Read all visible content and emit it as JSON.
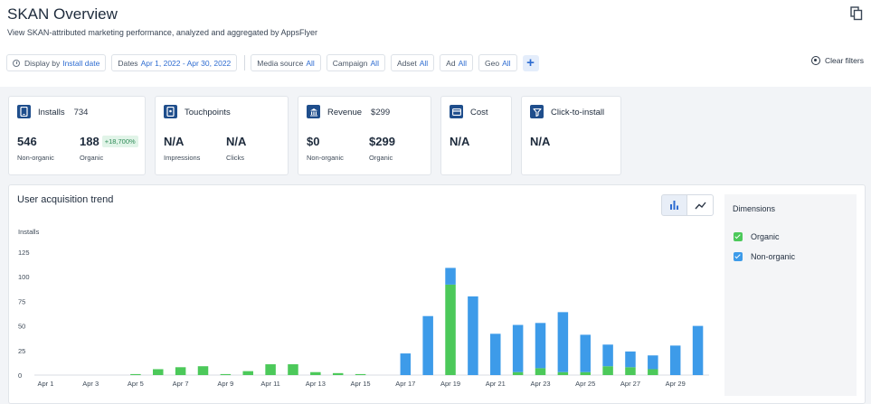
{
  "header": {
    "title": "SKAN Overview",
    "subtitle": "View SKAN-attributed marketing performance, analyzed and aggregated by AppsFlyer"
  },
  "filters": {
    "display_by": {
      "label": "Display by",
      "value": "Install date"
    },
    "dates": {
      "label": "Dates",
      "value": "Apr 1, 2022 - Apr 30, 2022"
    },
    "media_source": {
      "label": "Media source",
      "value": "All"
    },
    "campaign": {
      "label": "Campaign",
      "value": "All"
    },
    "adset": {
      "label": "Adset",
      "value": "All"
    },
    "ad": {
      "label": "Ad",
      "value": "All"
    },
    "geo": {
      "label": "Geo",
      "value": "All"
    },
    "add": "+",
    "clear_label": "Clear filters"
  },
  "cards": {
    "installs": {
      "title": "Installs",
      "total": "734",
      "m1": {
        "value": "546",
        "label": "Non-organic"
      },
      "m2": {
        "value": "188",
        "label": "Organic",
        "badge": "+18,700%"
      }
    },
    "touchpoints": {
      "title": "Touchpoints",
      "m1": {
        "value": "N/A",
        "label": "Impressions"
      },
      "m2": {
        "value": "N/A",
        "label": "Clicks"
      }
    },
    "revenue": {
      "title": "Revenue",
      "total": "$299",
      "m1": {
        "value": "$0",
        "label": "Non-organic"
      },
      "m2": {
        "value": "$299",
        "label": "Organic"
      }
    },
    "cost": {
      "title": "Cost",
      "m1": {
        "value": "N/A"
      }
    },
    "cti": {
      "title": "Click-to-install",
      "m1": {
        "value": "N/A"
      }
    }
  },
  "panel": {
    "title": "User acquisition trend"
  },
  "dimensions": {
    "title": "Dimensions",
    "items": [
      {
        "label": "Organic",
        "color": "#4cc95a"
      },
      {
        "label": "Non-organic",
        "color": "#3d9be9"
      }
    ]
  },
  "chart_data": {
    "type": "bar",
    "stacked": true,
    "ylabel": "Installs",
    "ylim": [
      0,
      125
    ],
    "yticks": [
      0,
      25,
      50,
      75,
      100,
      125
    ],
    "grid": false,
    "categories": [
      "Apr 1",
      "Apr 2",
      "Apr 3",
      "Apr 4",
      "Apr 5",
      "Apr 6",
      "Apr 7",
      "Apr 8",
      "Apr 9",
      "Apr 10",
      "Apr 11",
      "Apr 12",
      "Apr 13",
      "Apr 14",
      "Apr 15",
      "Apr 16",
      "Apr 17",
      "Apr 18",
      "Apr 19",
      "Apr 20",
      "Apr 21",
      "Apr 22",
      "Apr 23",
      "Apr 24",
      "Apr 25",
      "Apr 26",
      "Apr 27",
      "Apr 28",
      "Apr 29",
      "Apr 30"
    ],
    "tick_labels": [
      "Apr 1",
      "Apr 3",
      "Apr 5",
      "Apr 7",
      "Apr 9",
      "Apr 11",
      "Apr 13",
      "Apr 15",
      "Apr 17",
      "Apr 19",
      "Apr 21",
      "Apr 23",
      "Apr 25",
      "Apr 27",
      "Apr 29"
    ],
    "series": [
      {
        "name": "Organic",
        "color": "#4cc95a",
        "values": [
          0,
          0,
          0,
          0,
          1,
          6,
          8,
          9,
          1,
          4,
          11,
          11,
          3,
          2,
          1,
          0,
          0,
          0,
          92,
          0,
          0,
          3,
          7,
          3,
          3,
          9,
          8,
          6,
          0,
          0
        ]
      },
      {
        "name": "Non-organic",
        "color": "#3d9be9",
        "values": [
          0,
          0,
          0,
          0,
          0,
          0,
          0,
          0,
          0,
          0,
          0,
          0,
          0,
          0,
          0,
          0,
          22,
          60,
          17,
          80,
          42,
          48,
          46,
          61,
          38,
          22,
          16,
          14,
          30,
          50
        ]
      }
    ]
  }
}
